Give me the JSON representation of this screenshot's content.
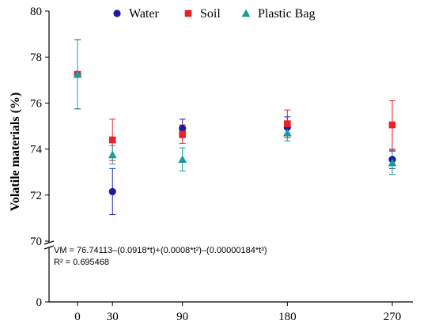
{
  "chart_data": {
    "type": "scatter",
    "title": "",
    "xlabel": "",
    "ylabel": "Volatile materials (%)",
    "x_ticks": [
      0,
      30,
      90,
      180,
      270
    ],
    "y_ticks_upper": [
      70,
      72,
      74,
      76,
      78,
      80
    ],
    "y_tick_lower": 0,
    "ylim": [
      0,
      80
    ],
    "axis_break": [
      0,
      70
    ],
    "grid": false,
    "legend_position": "top",
    "series": [
      {
        "name": "Water",
        "marker": "circle",
        "color": "#1a1aa6",
        "x": [
          0,
          30,
          90,
          180,
          270
        ],
        "y": [
          77.25,
          72.15,
          74.9,
          74.95,
          73.55
        ],
        "error": [
          1.5,
          1.0,
          0.4,
          0.45,
          0.4
        ]
      },
      {
        "name": "Soil",
        "marker": "square",
        "color": "#e8212a",
        "x": [
          0,
          30,
          90,
          180,
          270
        ],
        "y": [
          77.25,
          74.4,
          74.65,
          75.1,
          75.05
        ],
        "error": [
          1.5,
          0.9,
          0.4,
          0.6,
          1.05
        ]
      },
      {
        "name": "Plastic Bag",
        "marker": "triangle",
        "color": "#1a9c9c",
        "x": [
          0,
          30,
          90,
          180,
          270
        ],
        "y": [
          77.25,
          73.75,
          73.55,
          74.7,
          73.4
        ],
        "error": [
          1.5,
          0.4,
          0.5,
          0.35,
          0.5
        ]
      }
    ],
    "annotations": [
      "VM = 76.74113–(0.0918*t)+(0.0008*t²)–(0.00000184*t³)",
      "R² = 0.695468"
    ]
  }
}
